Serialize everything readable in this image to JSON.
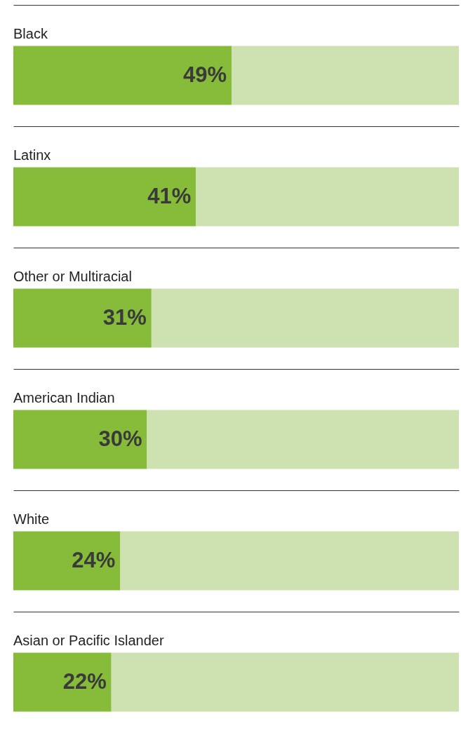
{
  "chart_data": {
    "type": "bar",
    "orientation": "horizontal",
    "stacked": true,
    "grid": "y",
    "xlim": [
      0,
      100
    ],
    "categories": [
      "Black",
      "Latinx",
      "Other or Multiracial",
      "American Indian",
      "White",
      "Asian or Pacific Islander"
    ],
    "series": [
      {
        "color": "#86bc3a",
        "values": [
          49,
          41,
          31,
          30,
          24,
          22
        ],
        "value_labels": [
          "49%",
          "41%",
          "31%",
          "30%",
          "24%",
          "22%"
        ]
      },
      {
        "color": "#cde2b0",
        "values": [
          51,
          59,
          69,
          70,
          76,
          78
        ]
      }
    ]
  }
}
